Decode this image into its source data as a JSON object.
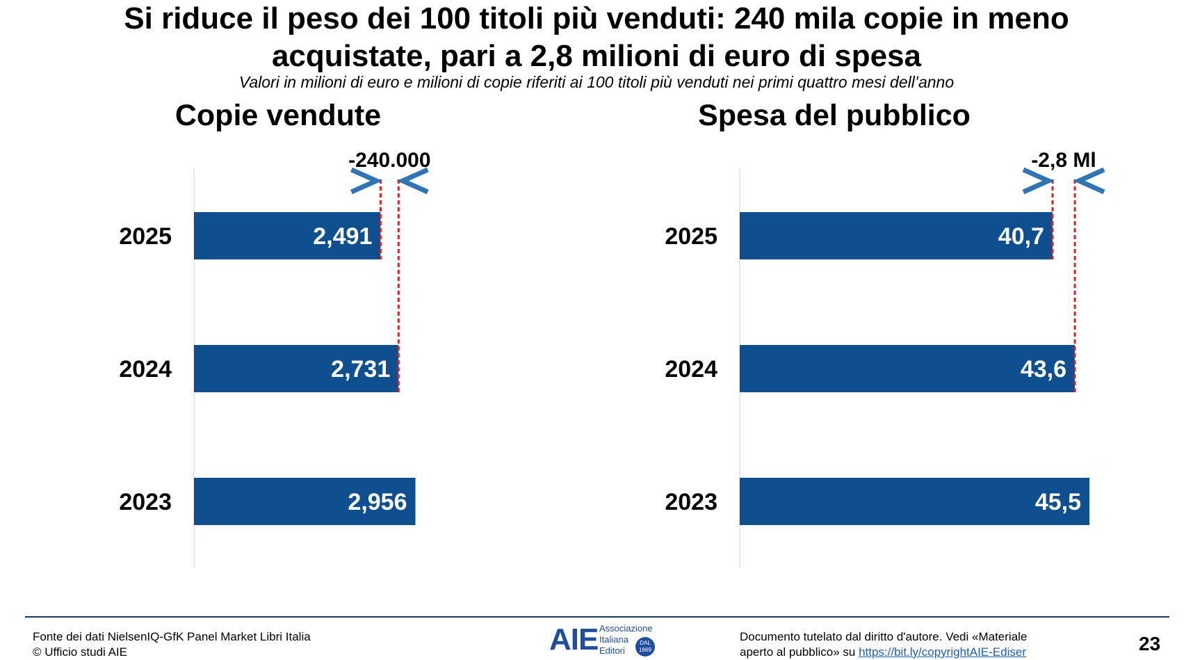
{
  "header": {
    "title_line1": "Si riduce il peso dei 100 titoli più venduti: 240 mila copie in meno",
    "title_line2": "acquistate, pari a 2,8 milioni di euro di spesa",
    "subtitle": "Valori in milioni di euro e milioni di copie riferiti ai 100 titoli più venduti nei primi quattro mesi dell’anno"
  },
  "colors": {
    "bar": "#0f4f8f",
    "dash": "#e02020",
    "chevron": "#2f75b5",
    "axis": "#d0d0d0"
  },
  "chart_data": [
    {
      "type": "bar",
      "orientation": "horizontal",
      "title": "Copie vendute",
      "categories": [
        "2025",
        "2024",
        "2023"
      ],
      "values": [
        2.491,
        2.731,
        2.956
      ],
      "value_labels": [
        "2,491",
        "2,731",
        "2,956"
      ],
      "xlim": [
        0,
        4.0
      ],
      "annotation": {
        "label": "-240.000",
        "from": 2.491,
        "to": 2.731
      }
    },
    {
      "type": "bar",
      "orientation": "horizontal",
      "title": "Spesa del pubblico",
      "categories": [
        "2025",
        "2024",
        "2023"
      ],
      "values": [
        40.7,
        43.6,
        45.5
      ],
      "value_labels": [
        "40,7",
        "43,6",
        "45,5"
      ],
      "xlim": [
        0,
        64.4
      ],
      "annotation": {
        "label": "-2,8 Ml",
        "from": 40.7,
        "to": 43.6
      }
    }
  ],
  "footer": {
    "source_line1": "Fonte dei dati NielsenIQ-GfK Panel Market Libri Italia",
    "source_line2": "© Ufficio studi AIE",
    "rights_line1": "Documento tutelato dal diritto d'autore. Vedi «Materiale",
    "rights_line2_prefix": "aperto al pubblico» su ",
    "rights_link": "https://bit.ly/copyrightAIE-Ediser",
    "page_number": "23"
  },
  "logo": {
    "mark": "AIE",
    "line1": "Associazione",
    "line2": "Italiana",
    "line3": "Editori",
    "seal_line1": "DAL",
    "seal_line2": "1869"
  }
}
